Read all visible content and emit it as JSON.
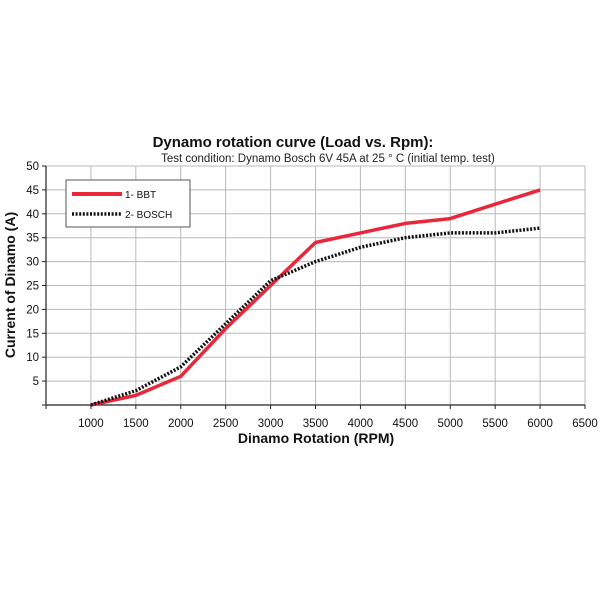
{
  "chart_data": {
    "type": "line",
    "title": "Dynamo rotation curve (Load vs. Rpm):",
    "subtitle": "Test condition: Dynamo Bosch 6V 45A at 25 ° C (initial temp. test)",
    "xlabel": "Dinamo Rotation (RPM)",
    "ylabel": "Current of Dinamo (A)",
    "xlim": [
      500,
      6500
    ],
    "ylim": [
      0,
      50
    ],
    "x_ticks": [
      1000,
      1500,
      2000,
      2500,
      3000,
      3500,
      4000,
      4500,
      5000,
      5500,
      6000,
      6500
    ],
    "y_ticks": [
      5,
      10,
      15,
      20,
      25,
      30,
      35,
      40,
      45,
      50
    ],
    "grid": true,
    "legend_position": "top-left",
    "series": [
      {
        "name": "1- BBT",
        "color": "#e8283a",
        "style": "solid",
        "x": [
          1000,
          1500,
          2000,
          2500,
          3000,
          3500,
          4000,
          4500,
          5000,
          5500,
          6000
        ],
        "y": [
          0,
          2,
          6,
          16,
          25,
          34,
          36,
          38,
          39,
          42,
          45
        ]
      },
      {
        "name": "2- BOSCH",
        "color": "#111111",
        "style": "dotted",
        "x": [
          1000,
          1500,
          2000,
          2500,
          3000,
          3500,
          4000,
          4500,
          5000,
          5500,
          6000
        ],
        "y": [
          0,
          3,
          8,
          17,
          26,
          30,
          33,
          35,
          36,
          36,
          37
        ]
      }
    ]
  }
}
